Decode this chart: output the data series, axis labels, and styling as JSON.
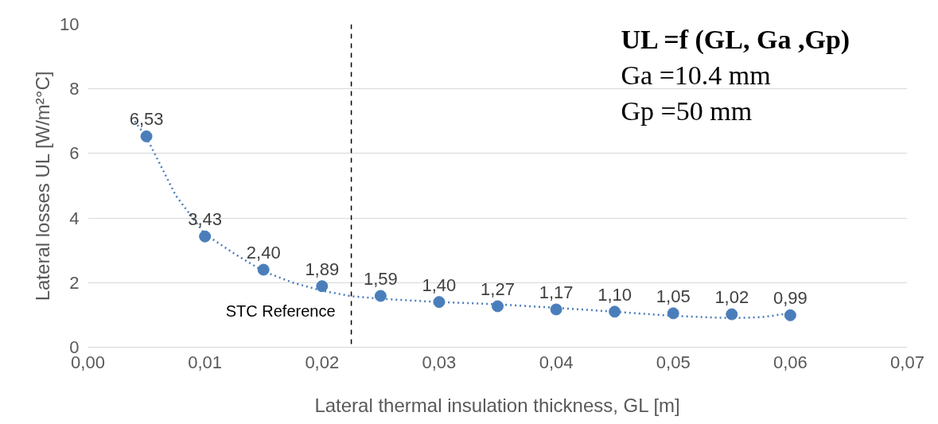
{
  "chart_data": {
    "type": "scatter",
    "xlabel": "Lateral thermal insulation thickness, GL [m]",
    "ylabel": "Lateral losses UL [W/m²°C]",
    "x": [
      0.005,
      0.01,
      0.015,
      0.02,
      0.025,
      0.03,
      0.035,
      0.04,
      0.045,
      0.05,
      0.055,
      0.06
    ],
    "series": [
      {
        "color": "#4a7ebb",
        "marker": "circle",
        "values": [
          6.53,
          3.43,
          2.4,
          1.89,
          1.59,
          1.4,
          1.27,
          1.17,
          1.1,
          1.05,
          1.02,
          0.99
        ],
        "value_labels": [
          "6,53",
          "3,43",
          "2,40",
          "1,89",
          "1,59",
          "1,40",
          "1,27",
          "1,17",
          "1,10",
          "1,05",
          "1,02",
          "0,99"
        ]
      },
      {
        "type": "line",
        "color": "#4a7ebb",
        "line_style": "dotted",
        "x": [
          0.004,
          0.005,
          0.0075,
          0.01,
          0.0125,
          0.015,
          0.0175,
          0.02,
          0.0225,
          0.025,
          0.03,
          0.035,
          0.04,
          0.045,
          0.05,
          0.055,
          0.0575,
          0.06
        ],
        "values": [
          7.0,
          6.5,
          4.7,
          3.5,
          2.9,
          2.35,
          2.0,
          1.75,
          1.58,
          1.5,
          1.4,
          1.33,
          1.22,
          1.1,
          0.97,
          0.9,
          0.93,
          1.05
        ]
      }
    ],
    "xlim": [
      0,
      0.07
    ],
    "xticks": [
      {
        "value": 0,
        "label": "0,00"
      },
      {
        "value": 0.01,
        "label": "0,01"
      },
      {
        "value": 0.02,
        "label": "0,02"
      },
      {
        "value": 0.03,
        "label": "0,03"
      },
      {
        "value": 0.04,
        "label": "0,04"
      },
      {
        "value": 0.05,
        "label": "0,05"
      },
      {
        "value": 0.06,
        "label": "0,06"
      },
      {
        "value": 0.07,
        "label": "0,07"
      }
    ],
    "ylim": [
      0,
      10
    ],
    "yticks": [
      0,
      2,
      4,
      6,
      8,
      10
    ],
    "grid": "y",
    "ref_lines": [
      {
        "axis": "x",
        "value": 0.0225,
        "label": "STC Reference",
        "color": "#000000",
        "line_style": "dashed"
      }
    ],
    "annotations": [
      "UL =f (GL, Ga ,Gp)",
      "Ga =10.4 mm",
      "Gp =50 mm"
    ]
  }
}
